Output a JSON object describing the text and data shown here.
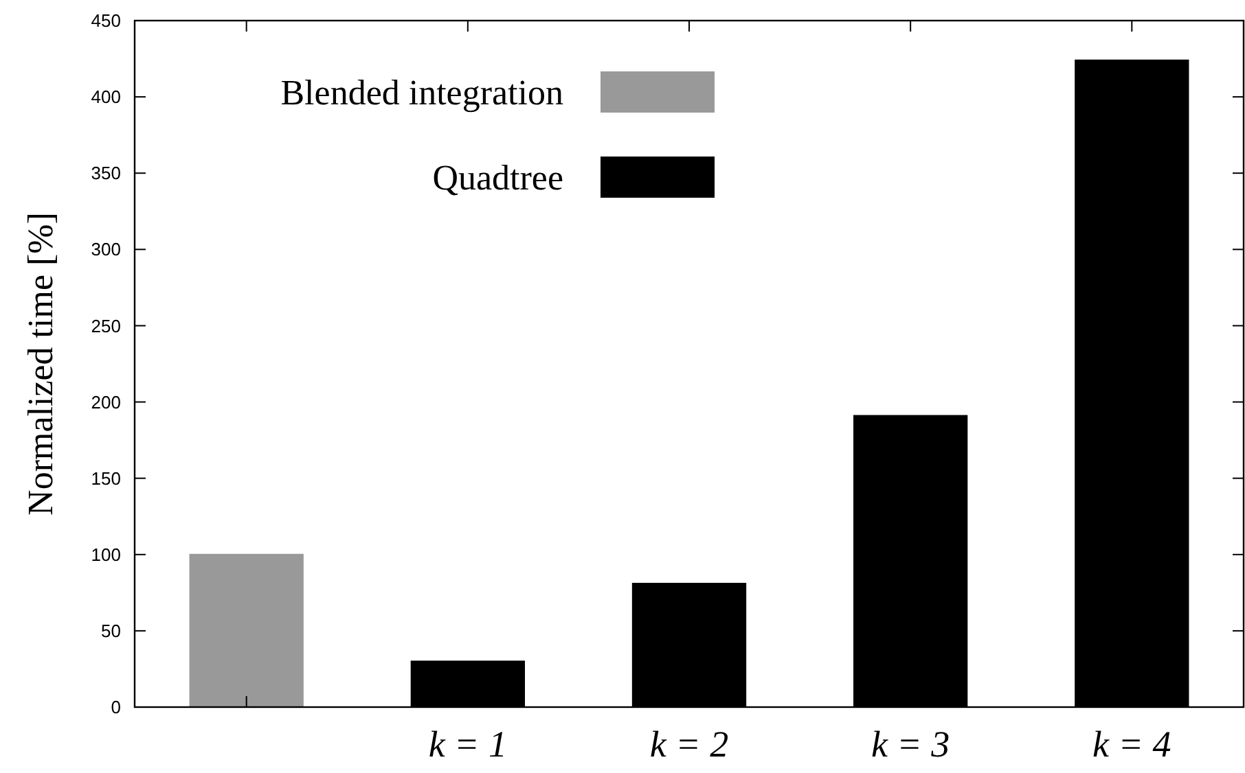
{
  "chart_data": {
    "type": "bar",
    "ylabel": "Normalized time [%]",
    "categories": [
      null,
      "k = 1",
      "k = 2",
      "k = 3",
      "k = 4"
    ],
    "series": [
      {
        "name": "Blended integration",
        "color": "#999999",
        "values": [
          100,
          null,
          null,
          null,
          null
        ]
      },
      {
        "name": "Quadtree",
        "color": "#000000",
        "values": [
          null,
          30,
          81,
          191,
          424
        ]
      }
    ],
    "ylim": [
      0,
      450
    ],
    "yticks": [
      0,
      50,
      100,
      150,
      200,
      250,
      300,
      350,
      400,
      450
    ],
    "legend": "top left",
    "grid": false
  }
}
